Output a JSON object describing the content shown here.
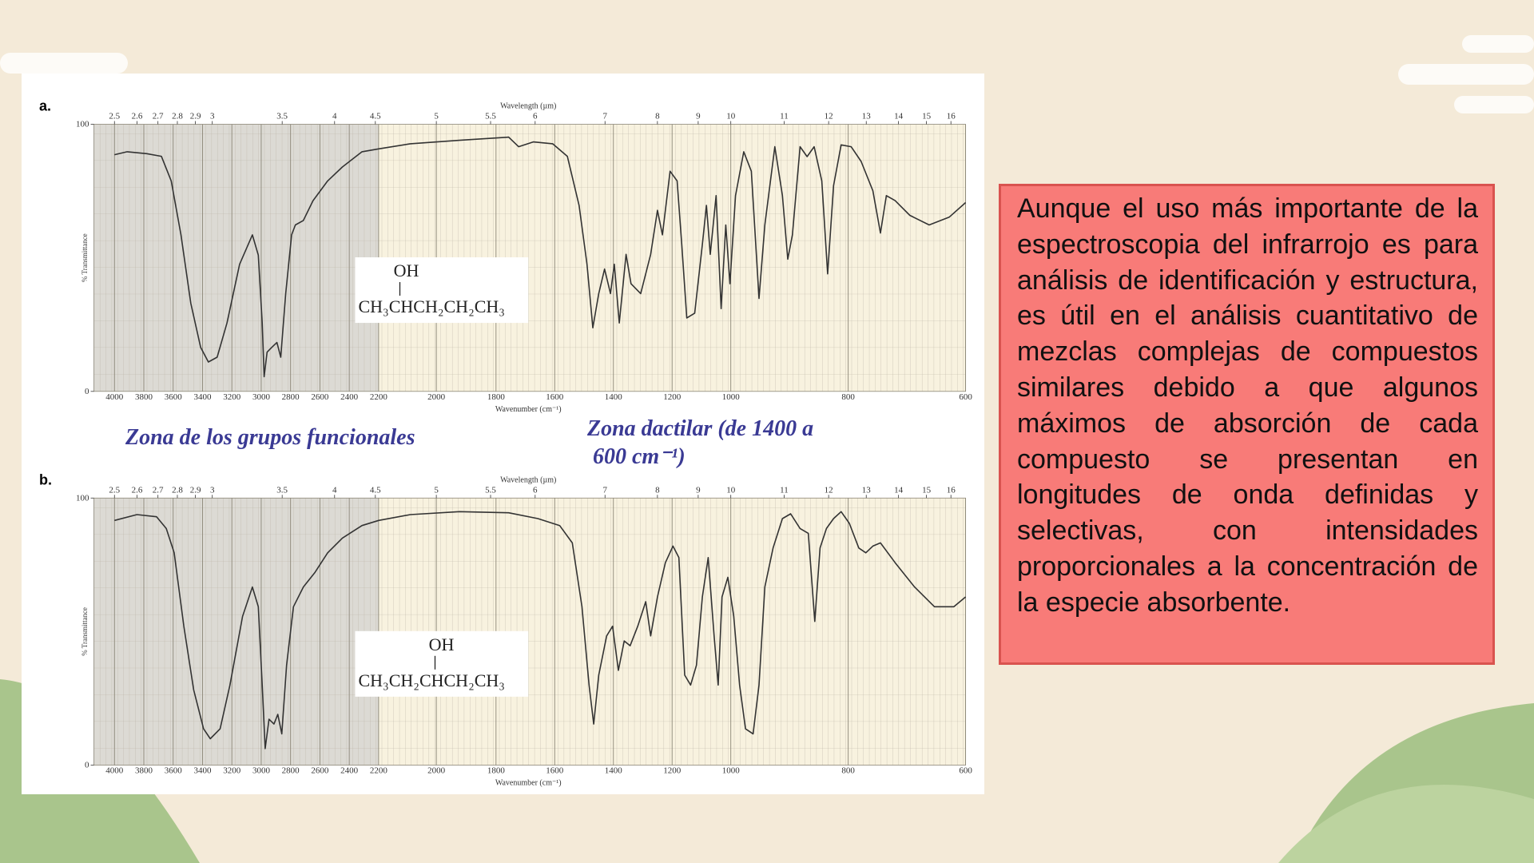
{
  "chart_data": [
    {
      "type": "line",
      "panel_label": "a.",
      "top_axis_label": "Wavelength (µm)",
      "xlabel": "Wavenumber (cm⁻¹)",
      "ylabel": "% Transmittance",
      "structure": {
        "group": "OH",
        "formula": "CH₃CHCH₂CH₂CH₃"
      },
      "xlim": [
        4000,
        600
      ],
      "xticks": [
        4000,
        3800,
        3600,
        3400,
        3200,
        3000,
        2800,
        2600,
        2400,
        2200,
        2000,
        1800,
        1600,
        1400,
        1200,
        1000,
        800,
        600
      ],
      "x2ticks": [
        2.5,
        2.6,
        2.7,
        2.8,
        2.9,
        3,
        3.5,
        4,
        4.5,
        5,
        5.5,
        6,
        7,
        8,
        9,
        10,
        11,
        12,
        13,
        14,
        15,
        16
      ],
      "ylim": [
        0,
        100
      ],
      "yticks": [
        0,
        100
      ],
      "series": [
        {
          "color": "#333333",
          "x": [
            4000,
            3913,
            3780,
            3680,
            3613,
            3547,
            3480,
            3413,
            3360,
            3300,
            3233,
            3147,
            3060,
            3020,
            2993,
            2980,
            2960,
            2927,
            2893,
            2867,
            2833,
            2793,
            2767,
            2713,
            2647,
            2547,
            2447,
            2313,
            2200,
            2090,
            1923,
            1757,
            1723,
            1673,
            1607,
            1557,
            1517,
            1490,
            1470,
            1450,
            1430,
            1410,
            1397,
            1380,
            1357,
            1340,
            1307,
            1273,
            1250,
            1233,
            1207,
            1183,
            1167,
            1150,
            1123,
            1097,
            1083,
            1070,
            1050,
            1033,
            1017,
            1003,
            992,
            978,
            965,
            952,
            942,
            925,
            912,
            903,
            895,
            882,
            870,
            858,
            845,
            835,
            825,
            812,
            795,
            778,
            758,
            745,
            735,
            720,
            695,
            662,
            628,
            600
          ],
          "values": [
            88.6,
            89.7,
            89,
            88,
            78.8,
            58.6,
            33,
            16.5,
            11,
            12.8,
            25.6,
            47.6,
            58.6,
            51,
            25.6,
            5.5,
            14.7,
            16.5,
            18.3,
            12.8,
            36.6,
            58.6,
            62.3,
            64,
            71.4,
            78.8,
            84,
            89.7,
            90.8,
            92.7,
            94,
            95.2,
            91.6,
            93.4,
            92.7,
            88,
            69.6,
            47.6,
            23.8,
            36.6,
            45.8,
            36.6,
            47.6,
            25.6,
            51.3,
            40.3,
            36.6,
            51.3,
            67.8,
            58.6,
            82.4,
            78.8,
            55,
            27.5,
            29.3,
            55,
            69.6,
            51.3,
            73.3,
            31,
            62.3,
            40.3,
            73.3,
            89.7,
            82.4,
            34.8,
            62.3,
            91.6,
            73.3,
            49.5,
            58.6,
            91.6,
            87.9,
            91.6,
            78.8,
            44,
            77,
            92.3,
            91.6,
            86.1,
            75.1,
            59.3,
            73.3,
            71.4,
            65.9,
            62.3,
            65.2,
            70.7
          ]
        }
      ]
    },
    {
      "type": "line",
      "panel_label": "b.",
      "top_axis_label": "Wavelength (µm)",
      "xlabel": "Wavenumber (cm⁻¹)",
      "ylabel": "% Transmittance",
      "structure": {
        "group": "OH",
        "formula": "CH₃CH₂CHCH₂CH₃"
      },
      "xlim": [
        4000,
        600
      ],
      "xticks": [
        4000,
        3800,
        3600,
        3400,
        3200,
        3000,
        2800,
        2600,
        2400,
        2200,
        2000,
        1800,
        1600,
        1400,
        1200,
        1000,
        800,
        600
      ],
      "x2ticks": [
        2.5,
        2.6,
        2.7,
        2.8,
        2.9,
        3,
        3.5,
        4,
        4.5,
        5,
        5.5,
        6,
        7,
        8,
        9,
        10,
        11,
        12,
        13,
        14,
        15,
        16
      ],
      "ylim": [
        0,
        100
      ],
      "yticks": [
        0,
        100
      ],
      "series": [
        {
          "color": "#333333",
          "x": [
            4000,
            3847,
            3713,
            3647,
            3593,
            3527,
            3460,
            3393,
            3347,
            3280,
            3213,
            3127,
            3060,
            3020,
            2993,
            2973,
            2947,
            2913,
            2887,
            2860,
            2827,
            2780,
            2713,
            2633,
            2547,
            2447,
            2313,
            2200,
            2090,
            1923,
            1757,
            1657,
            1583,
            1540,
            1507,
            1483,
            1467,
            1450,
            1423,
            1403,
            1383,
            1363,
            1343,
            1317,
            1290,
            1273,
            1250,
            1223,
            1197,
            1177,
            1157,
            1137,
            1117,
            1097,
            1077,
            1057,
            1043,
            1030,
            1010,
            995,
            985,
            975,
            962,
            952,
            942,
            928,
            912,
            898,
            882,
            868,
            857,
            848,
            837,
            825,
            812,
            798,
            782,
            770,
            758,
            745,
            720,
            687,
            653,
            620,
            600
          ],
          "values": [
            91.6,
            93.8,
            93,
            88.6,
            79.5,
            52,
            28.2,
            13.6,
            9.9,
            13.6,
            30,
            55.7,
            66.7,
            59.3,
            30,
            6.2,
            17.2,
            15.4,
            19,
            11.7,
            37.4,
            59.3,
            66.7,
            72.2,
            79.5,
            85,
            89.7,
            91.6,
            93.8,
            94.9,
            94.5,
            92.3,
            89.7,
            83.2,
            59.3,
            30,
            15.4,
            33.7,
            48.4,
            52,
            35.5,
            46.5,
            44.7,
            52,
            61.2,
            48.4,
            63,
            75.8,
            82,
            77.7,
            33.7,
            30,
            37.4,
            63,
            77.7,
            48.4,
            30,
            63,
            70.3,
            55.7,
            30,
            13.6,
            11.7,
            30,
            66.7,
            81.3,
            92.3,
            94.1,
            88.6,
            86.8,
            53.8,
            81.3,
            88.6,
            92.3,
            94.9,
            90.5,
            81.3,
            79.5,
            82,
            83.2,
            75.8,
            66.7,
            59.3,
            59.3,
            63
          ]
        }
      ]
    }
  ],
  "annotations": [
    "Zona de los grupos funcionales",
    "Zona dactilar (de 1400 a",
    "600 cm⁻¹)"
  ],
  "text_box": "Aunque el uso más importante de la espectroscopia del infrarrojo es para análisis de identificación y estructura, es útil en el análisis cuantitativo de mezclas complejas de compuestos similares debido a que algunos máximos de absorción de cada compuesto se presentan en longitudes de onda definidas y selectivas, con intensidades proporcionales a la concentración de la especie absorbente."
}
